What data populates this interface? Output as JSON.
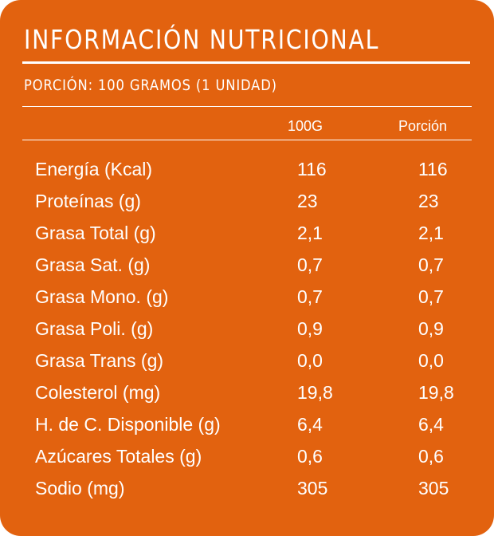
{
  "title": "INFORMACIÓN NUTRICIONAL",
  "serving": "PORCIÓN: 100 GRAMOS (1 UNIDAD)",
  "columns": {
    "per100": "100G",
    "portion": "Porción"
  },
  "colors": {
    "background": "#e2620f",
    "text": "#ffffff"
  },
  "rows": [
    {
      "label": "Energía (Kcal)",
      "per100": "116",
      "portion": "116"
    },
    {
      "label": "Proteínas (g)",
      "per100": "23",
      "portion": "23"
    },
    {
      "label": "Grasa Total (g)",
      "per100": "2,1",
      "portion": "2,1"
    },
    {
      "label": "Grasa Sat. (g)",
      "per100": "0,7",
      "portion": "0,7"
    },
    {
      "label": "Grasa Mono. (g)",
      "per100": "0,7",
      "portion": "0,7"
    },
    {
      "label": "Grasa Poli. (g)",
      "per100": "0,9",
      "portion": "0,9"
    },
    {
      "label": "Grasa Trans (g)",
      "per100": "0,0",
      "portion": "0,0"
    },
    {
      "label": "Colesterol (mg)",
      "per100": "19,8",
      "portion": "19,8"
    },
    {
      "label": "H. de C. Disponible (g)",
      "per100": "6,4",
      "portion": "6,4"
    },
    {
      "label": "Azúcares Totales (g)",
      "per100": "0,6",
      "portion": "0,6"
    },
    {
      "label": "Sodio (mg)",
      "per100": "305",
      "portion": "305"
    }
  ]
}
